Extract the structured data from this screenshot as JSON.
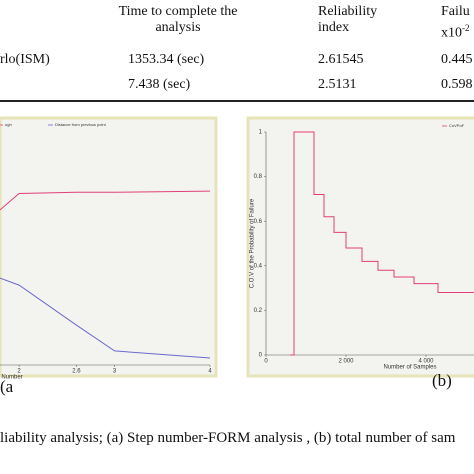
{
  "table": {
    "header": {
      "time": "Time to complete the analysis",
      "reliability": "Reliability index",
      "failure": {
        "title": "Failu",
        "unit": "x10",
        "exponent": "-2"
      }
    },
    "rows": [
      {
        "method": "rlo(ISM)",
        "time": "1353.34  (sec)",
        "reliability": "2.61545",
        "failure": "0.445"
      },
      {
        "time": "7.438  (sec)",
        "reliability": "2.5131",
        "failure": "0.598"
      }
    ]
  },
  "figures": [
    {
      "type": "line",
      "label": "(a",
      "legend": [
        "ugh",
        "Distance from previous point"
      ],
      "x_label": "Step Number",
      "xlim": [
        1.8,
        4.0
      ],
      "ylim": [
        0,
        1
      ],
      "xticks": [
        2,
        2.6,
        3,
        4
      ],
      "series": [
        {
          "color": "#e0407a",
          "x": [
            1.8,
            2,
            2.6,
            3,
            4
          ],
          "values": [
            0.66,
            0.73,
            0.735,
            0.735,
            0.74
          ]
        },
        {
          "color": "#6a6acc",
          "x": [
            1.8,
            2,
            2.6,
            3,
            4
          ],
          "values": [
            0.37,
            0.34,
            0.17,
            0.06,
            0.03
          ]
        }
      ]
    },
    {
      "type": "line",
      "label": "(b)",
      "legend": [
        "CoVPoF"
      ],
      "x_label": "Number of Samples",
      "y_label": "C.O.V of the Probability of Failure",
      "xlim": [
        0,
        5200
      ],
      "ylim": [
        0,
        1
      ],
      "xticks": [
        0,
        {
          "value": 2000,
          "label": "2 000"
        },
        {
          "value": 4000,
          "label": "4 000"
        }
      ],
      "yticks": [
        0,
        0.2,
        0.4,
        0.6,
        0.8,
        1
      ],
      "series": [
        {
          "color": "#e0407a",
          "x": [
            600,
            700,
            700,
            1200,
            1200,
            1450,
            1450,
            1700,
            1700,
            2000,
            2000,
            2400,
            2400,
            2800,
            2800,
            3200,
            3200,
            3700,
            3700,
            4300,
            4300,
            5200
          ],
          "values": [
            0,
            0,
            1,
            1,
            0.72,
            0.72,
            0.62,
            0.62,
            0.55,
            0.55,
            0.48,
            0.48,
            0.42,
            0.42,
            0.38,
            0.38,
            0.35,
            0.35,
            0.32,
            0.32,
            0.28,
            0.28
          ]
        }
      ]
    }
  ],
  "caption": "liability analysis; (a) Step number-FORM analysis , (b) total number of sam"
}
